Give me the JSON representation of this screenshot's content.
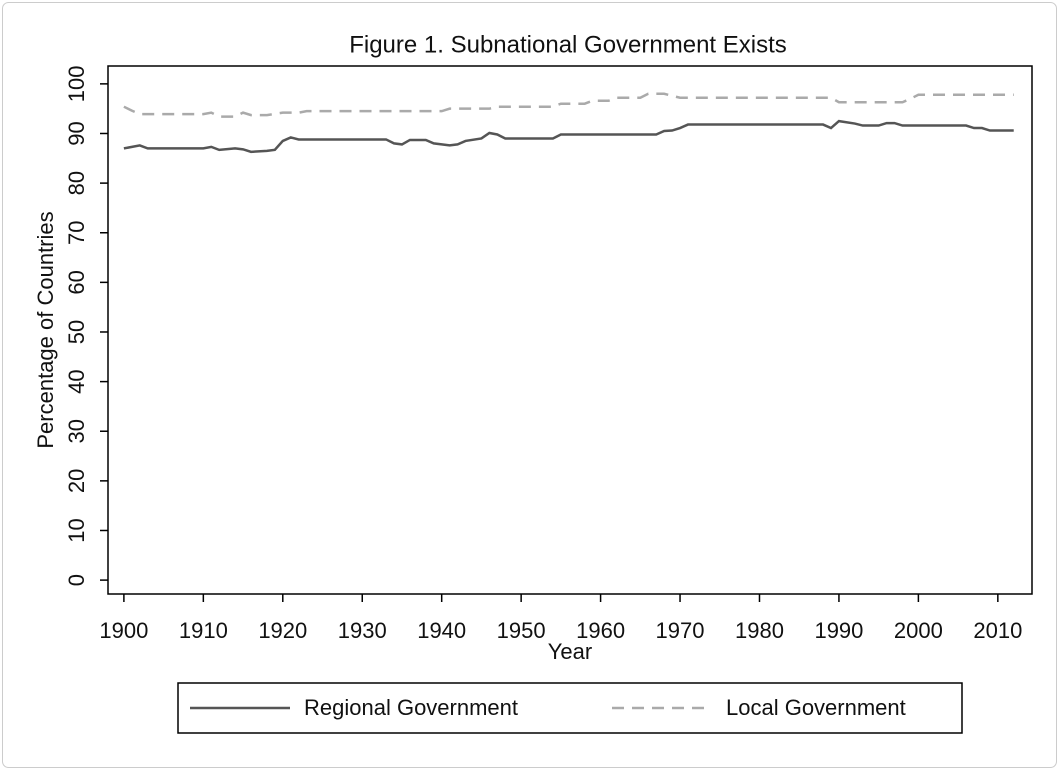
{
  "chart_data": {
    "type": "line",
    "title": "Figure 1.  Subnational Government Exists",
    "x_label": "Year",
    "y_label": "Percentage of Countries",
    "xlim": [
      1898,
      2014.3
    ],
    "xticks": [
      1900,
      1910,
      1920,
      1930,
      1940,
      1950,
      1960,
      1970,
      1980,
      1990,
      2000,
      2010
    ],
    "ylim": [
      -2.8,
      103.6
    ],
    "yticks": [
      0,
      10,
      20,
      30,
      40,
      50,
      60,
      70,
      80,
      90,
      100
    ],
    "legend": "bottom",
    "series": [
      {
        "name": "Regional Government",
        "color": "#555555",
        "line_style": "solid",
        "x": [
          1900,
          1902,
          1903,
          1910,
          1911,
          1912,
          1914,
          1915,
          1916,
          1918,
          1919,
          1920,
          1921,
          1922,
          1933,
          1934,
          1935,
          1936,
          1938,
          1939,
          1941,
          1942,
          1943,
          1945,
          1946,
          1947,
          1948,
          1954,
          1955,
          1967,
          1968,
          1969,
          1970,
          1971,
          1988,
          1989,
          1990,
          1992,
          1993,
          1995,
          1996,
          1997,
          1998,
          2006,
          2007,
          2008,
          2009,
          2012
        ],
        "values": [
          87,
          87.6,
          87,
          87,
          87.3,
          86.7,
          87,
          86.8,
          86.3,
          86.5,
          86.7,
          88.5,
          89.2,
          88.8,
          88.8,
          88,
          87.8,
          88.7,
          88.7,
          88,
          87.6,
          87.8,
          88.5,
          89,
          90.1,
          89.8,
          89,
          89,
          89.8,
          89.8,
          90.5,
          90.6,
          91.1,
          91.8,
          91.8,
          91.1,
          92.5,
          92,
          91.6,
          91.6,
          92.1,
          92.1,
          91.6,
          91.6,
          91.1,
          91.1,
          90.6,
          90.6
        ]
      },
      {
        "name": "Local Government",
        "color": "#aaaaaa",
        "line_style": "dashed",
        "x": [
          1900,
          1901,
          1902,
          1910,
          1911,
          1912,
          1914,
          1915,
          1916,
          1918,
          1920,
          1922,
          1923,
          1940,
          1941,
          1946,
          1947,
          1954,
          1955,
          1958,
          1959,
          1961,
          1962,
          1965,
          1966,
          1968,
          1970,
          1989,
          1990,
          1998,
          1999,
          2000,
          2012
        ],
        "values": [
          95.4,
          94.6,
          93.9,
          93.9,
          94.2,
          93.4,
          93.4,
          94.2,
          93.7,
          93.7,
          94.2,
          94.2,
          94.5,
          94.5,
          95,
          95,
          95.4,
          95.4,
          96,
          96,
          96.6,
          96.6,
          97.2,
          97.2,
          98,
          98,
          97.2,
          97.2,
          96.3,
          96.3,
          97,
          97.8,
          97.8
        ]
      }
    ]
  }
}
